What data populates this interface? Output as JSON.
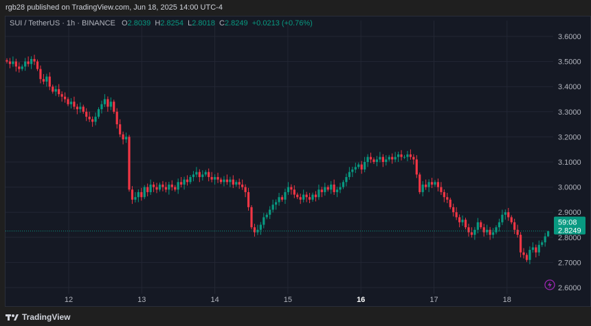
{
  "header": {
    "published": "rgb28 published on TradingView.com, Jun 18, 2025 14:00 UTC-4"
  },
  "legend": {
    "symbol": "SUI / TetherUS · 1h · BINANCE",
    "o_label": "O",
    "o": "2.8039",
    "h_label": "H",
    "h": "2.8254",
    "l_label": "L",
    "l": "2.8018",
    "c_label": "C",
    "c": "2.8249",
    "change": "+0.0213 (+0.76%)"
  },
  "price_tag": {
    "price": "2.8249",
    "countdown": "59:08"
  },
  "footer": {
    "brand": "TradingView"
  },
  "colors": {
    "up": "#089981",
    "down": "#f23645",
    "background": "#151924",
    "grid": "#232734",
    "lightning_icon": "#9c27b0"
  },
  "chart_data": {
    "type": "candlestick",
    "title": "SUI / TetherUS · 1h · BINANCE",
    "interval": "1h",
    "ylim": [
      2.58,
      3.66
    ],
    "y_ticks": [
      "3.6000",
      "3.5000",
      "3.4000",
      "3.3000",
      "3.2000",
      "3.1000",
      "3.0000",
      "2.9000",
      "2.8000",
      "2.7000",
      "2.6000"
    ],
    "x_ticks": [
      "12",
      "13",
      "14",
      "15",
      "16",
      "17",
      "18"
    ],
    "grid": true,
    "last_candle": {
      "open": 2.8039,
      "high": 2.8254,
      "low": 2.8018,
      "close": 2.8249
    },
    "closes": [
      3.5,
      3.49,
      3.5,
      3.48,
      3.47,
      3.48,
      3.5,
      3.49,
      3.51,
      3.5,
      3.47,
      3.43,
      3.42,
      3.44,
      3.4,
      3.38,
      3.39,
      3.37,
      3.36,
      3.35,
      3.33,
      3.34,
      3.32,
      3.31,
      3.32,
      3.3,
      3.28,
      3.27,
      3.26,
      3.28,
      3.31,
      3.33,
      3.35,
      3.32,
      3.34,
      3.3,
      3.25,
      3.21,
      3.19,
      3.2,
      2.99,
      2.95,
      2.96,
      2.98,
      2.96,
      3.0,
      2.98,
      3.01,
      3.0,
      2.99,
      3.01,
      3.0,
      2.99,
      3.01,
      3.0,
      2.99,
      3.02,
      3.01,
      3.03,
      3.02,
      3.04,
      3.05,
      3.06,
      3.04,
      3.05,
      3.06,
      3.04,
      3.03,
      3.04,
      3.03,
      3.02,
      3.03,
      3.02,
      3.03,
      3.01,
      3.02,
      3.01,
      3.0,
      2.98,
      2.92,
      2.84,
      2.82,
      2.83,
      2.85,
      2.88,
      2.89,
      2.91,
      2.93,
      2.94,
      2.96,
      2.95,
      2.98,
      3.0,
      2.99,
      2.97,
      2.96,
      2.95,
      2.97,
      2.96,
      2.95,
      2.97,
      2.96,
      2.99,
      2.98,
      3.0,
      2.99,
      3.01,
      2.98,
      2.99,
      3.0,
      3.02,
      3.04,
      3.06,
      3.07,
      3.08,
      3.09,
      3.07,
      3.1,
      3.12,
      3.11,
      3.1,
      3.11,
      3.12,
      3.1,
      3.11,
      3.12,
      3.11,
      3.12,
      3.13,
      3.12,
      3.12,
      3.13,
      3.12,
      3.11,
      3.05,
      2.98,
      3.01,
      3.0,
      3.02,
      3.01,
      3.02,
      3.0,
      2.98,
      2.96,
      2.95,
      2.92,
      2.9,
      2.88,
      2.86,
      2.87,
      2.84,
      2.82,
      2.81,
      2.83,
      2.86,
      2.84,
      2.82,
      2.83,
      2.81,
      2.82,
      2.84,
      2.86,
      2.89,
      2.9,
      2.88,
      2.86,
      2.83,
      2.81,
      2.74,
      2.73,
      2.71,
      2.75,
      2.76,
      2.74,
      2.77,
      2.78,
      2.8039,
      2.8249
    ]
  }
}
